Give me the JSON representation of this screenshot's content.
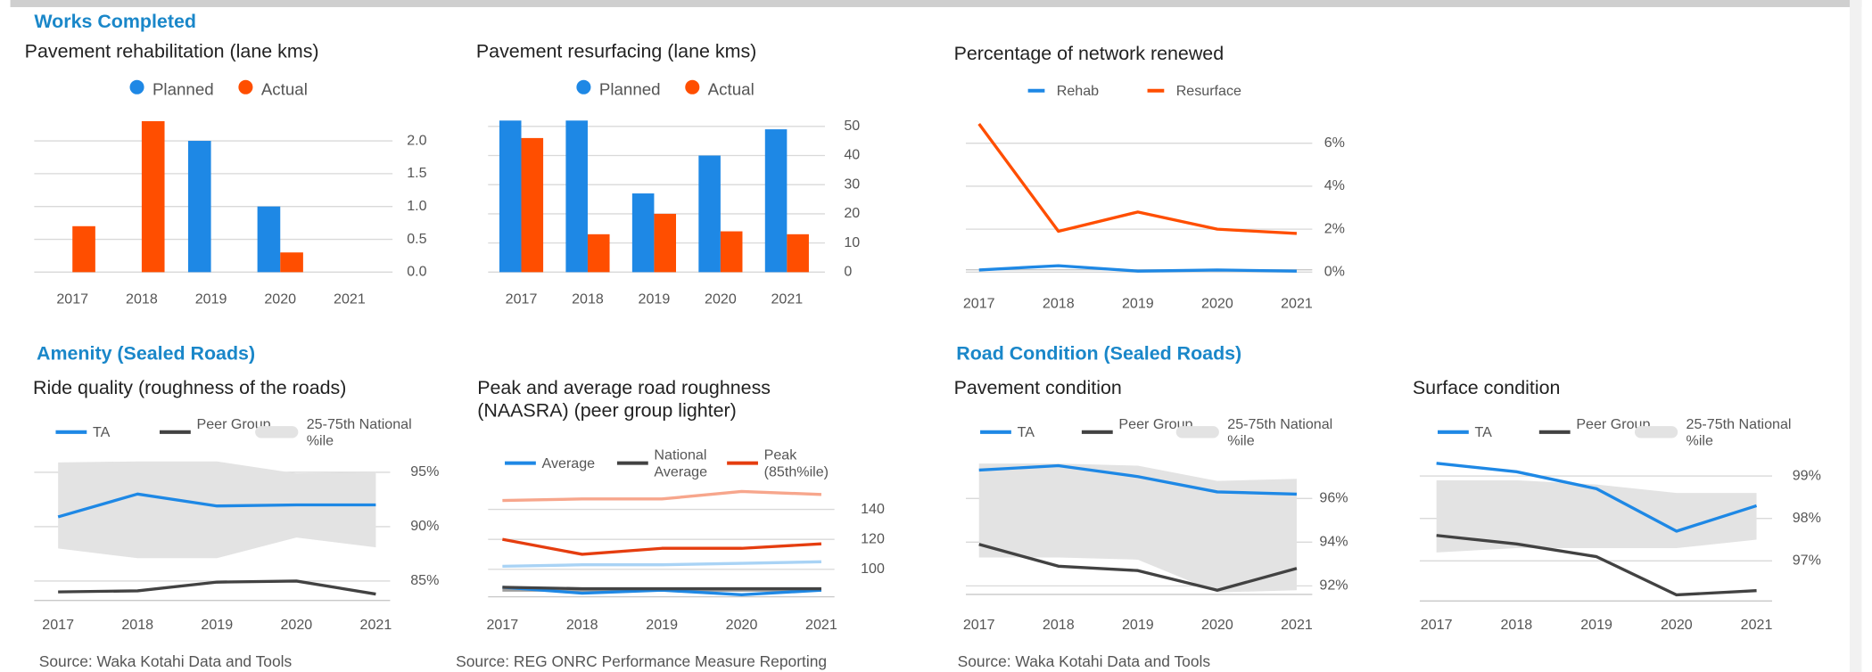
{
  "headings": [
    "Works Completed",
    "Amenity (Sealed Roads)",
    "Road Condition (Sealed Roads)"
  ],
  "sources": [
    "Source: Waka Kotahi Data and Tools",
    "Source: REG ONRC Performance Measure Reporting",
    "Source: Waka Kotahi Data and Tools"
  ],
  "chart_data": [
    {
      "type": "bar",
      "title": "Pavement rehabilitation (lane kms)",
      "categories": [
        "2017",
        "2018",
        "2019",
        "2020",
        "2021"
      ],
      "series": [
        {
          "name": "Planned",
          "color": "#1e88e5",
          "values": [
            0,
            0,
            2.0,
            1.0,
            0
          ]
        },
        {
          "name": "Actual",
          "color": "#ff4e00",
          "values": [
            0.7,
            2.3,
            0,
            0.3,
            0
          ]
        }
      ],
      "ylim": [
        0,
        2.4
      ],
      "yticks": [
        {
          "value": 0,
          "label": "0.0"
        },
        {
          "value": 0.5,
          "label": "0.5"
        },
        {
          "value": 1,
          "label": "1.0"
        },
        {
          "value": 1.5,
          "label": "1.5"
        },
        {
          "value": 2,
          "label": "2.0"
        }
      ],
      "grid": true
    },
    {
      "type": "bar",
      "title": "Pavement resurfacing (lane kms)",
      "categories": [
        "2017",
        "2018",
        "2019",
        "2020",
        "2021"
      ],
      "series": [
        {
          "name": "Planned",
          "color": "#1e88e5",
          "values": [
            52,
            52,
            27,
            40,
            49
          ]
        },
        {
          "name": "Actual",
          "color": "#ff4e00",
          "values": [
            46,
            13,
            20,
            14,
            13
          ]
        }
      ],
      "ylim": [
        0,
        52
      ],
      "yticks": [
        0,
        10,
        20,
        30,
        40,
        50
      ],
      "grid": true
    },
    {
      "type": "line",
      "title": "Percentage of network renewed",
      "categories": [
        "2017",
        "2018",
        "2019",
        "2020",
        "2021"
      ],
      "series": [
        {
          "name": "Rehab",
          "color": "#1e88e5",
          "values": [
            0.1,
            0.3,
            0.05,
            0.1,
            0.05
          ]
        },
        {
          "name": "Resurface",
          "color": "#ff4e00",
          "values": [
            6.9,
            1.9,
            2.8,
            2.0,
            1.8
          ]
        }
      ],
      "ylim": [
        0,
        7
      ],
      "yticks": [
        {
          "value": 0,
          "label": "0%"
        },
        {
          "value": 2,
          "label": "2%"
        },
        {
          "value": 4,
          "label": "4%"
        },
        {
          "value": 6,
          "label": "6%"
        }
      ],
      "grid": true
    },
    {
      "type": "line",
      "title": "Ride quality (roughness of the roads)",
      "categories": [
        "2017",
        "2018",
        "2019",
        "2020",
        "2021"
      ],
      "series": [
        {
          "name": "TA",
          "color": "#1e88e5",
          "values": [
            90.9,
            93,
            91.9,
            92,
            92
          ]
        },
        {
          "name": "Peer Group",
          "color": "#424242",
          "values": [
            84,
            84.1,
            84.9,
            85,
            83.8
          ]
        }
      ],
      "band": {
        "name": "25-75th National %ile",
        "color": "#e3e3e3",
        "upper": [
          95.9,
          96,
          96,
          94.9,
          95
        ],
        "lower": [
          88,
          87.1,
          87.1,
          89,
          88.1
        ]
      },
      "ylim": [
        83,
        96.5
      ],
      "yticks": [
        {
          "value": 85,
          "label": "85%"
        },
        {
          "value": 90,
          "label": "90%"
        },
        {
          "value": 95,
          "label": "95%"
        }
      ],
      "grid": true
    },
    {
      "type": "line",
      "title": "Peak and average road roughness (NAASRA) (peer group lighter)",
      "categories": [
        "2017",
        "2018",
        "2019",
        "2020",
        "2021"
      ],
      "series": [
        {
          "color": "#f7a68c",
          "values": [
            146,
            147,
            147,
            152,
            150
          ]
        },
        {
          "color": "#a9d3f5",
          "values": [
            102,
            103,
            103,
            104,
            105
          ]
        },
        {
          "color": "#9e9e9e",
          "values": [
            86,
            86,
            86,
            86,
            86
          ]
        },
        {
          "name": "Average",
          "color": "#1e88e5",
          "values": [
            88,
            84,
            86,
            83,
            86
          ]
        },
        {
          "name": "National Average",
          "color": "#424242",
          "values": [
            88,
            87,
            87,
            87,
            87
          ]
        },
        {
          "name": "Peak (85th%ile)",
          "color": "#e53d0f",
          "values": [
            120,
            110,
            114,
            114,
            117
          ]
        }
      ],
      "ylim": [
        80,
        155
      ],
      "yticks": [
        100,
        120,
        140
      ],
      "grid": true
    },
    {
      "type": "line",
      "title": "Pavement condition",
      "categories": [
        "2017",
        "2018",
        "2019",
        "2020",
        "2021"
      ],
      "series": [
        {
          "name": "TA",
          "color": "#1e88e5",
          "values": [
            97.3,
            97.5,
            97.0,
            96.3,
            96.2
          ]
        },
        {
          "name": "Peer Group",
          "color": "#424242",
          "values": [
            93.9,
            92.9,
            92.7,
            91.8,
            92.8
          ]
        }
      ],
      "band": {
        "name": "25-75th National %ile",
        "color": "#e3e3e3",
        "upper": [
          97.6,
          97.6,
          97.5,
          96.8,
          96.9
        ],
        "lower": [
          93.3,
          93.3,
          93.2,
          91.7,
          91.8
        ]
      },
      "ylim": [
        91.5,
        98
      ],
      "yticks": [
        {
          "value": 92,
          "label": "92%"
        },
        {
          "value": 94,
          "label": "94%"
        },
        {
          "value": 96,
          "label": "96%"
        }
      ],
      "grid": true
    },
    {
      "type": "line",
      "title": "Surface condition",
      "categories": [
        "2017",
        "2018",
        "2019",
        "2020",
        "2021"
      ],
      "series": [
        {
          "name": "TA",
          "color": "#1e88e5",
          "values": [
            99.3,
            99.1,
            98.7,
            97.7,
            98.3
          ]
        },
        {
          "name": "Peer Group",
          "color": "#424242",
          "values": [
            97.6,
            97.4,
            97.1,
            96.2,
            96.3
          ]
        }
      ],
      "band": {
        "name": "25-75th National %ile",
        "color": "#e3e3e3",
        "upper": [
          98.9,
          98.9,
          98.8,
          98.6,
          98.6
        ],
        "lower": [
          97.2,
          97.3,
          97.3,
          97.3,
          97.5
        ]
      },
      "ylim": [
        96,
        99.5
      ],
      "yticks": [
        {
          "value": 97,
          "label": "97%"
        },
        {
          "value": 98,
          "label": "98%"
        },
        {
          "value": 99,
          "label": "99%"
        }
      ],
      "grid": true
    }
  ]
}
